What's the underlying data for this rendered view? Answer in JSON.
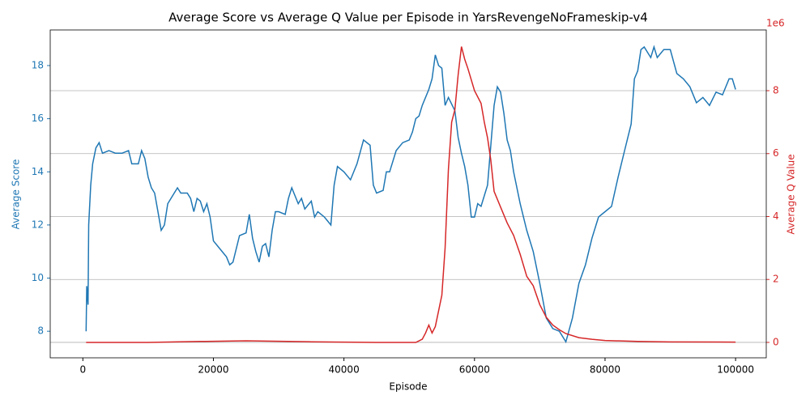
{
  "chart_data": {
    "type": "line",
    "title": "Average Score vs Average Q Value per Episode in YarsRevengeNoFrameskip-v4",
    "x_label": "Episode",
    "y_label": "Average Score",
    "y2_label": "Average Q Value",
    "y2_offset_text": "1e6",
    "xlim": [
      -5000,
      104700
    ],
    "xticks": [
      0,
      20000,
      40000,
      60000,
      80000,
      100000
    ],
    "ylim": [
      7.0,
      19.34
    ],
    "yticks": [
      8,
      10,
      12,
      14,
      16,
      18
    ],
    "y2lim": [
      -490000,
      9930000
    ],
    "y2ticks": [
      {
        "value": 0,
        "label": "0"
      },
      {
        "value": 2000000,
        "label": "2"
      },
      {
        "value": 4000000,
        "label": "4"
      },
      {
        "value": 6000000,
        "label": "6"
      },
      {
        "value": 8000000,
        "label": "8"
      }
    ],
    "grid": true,
    "grid_axis": "y2",
    "series": [
      {
        "name": "Average Score",
        "color": "#1f77b4",
        "axis": "y",
        "x": [
          500,
          600,
          800,
          900,
          1200,
          1500,
          2000,
          2500,
          3000,
          4000,
          5000,
          6000,
          7000,
          7500,
          8500,
          9000,
          9500,
          10000,
          10500,
          11000,
          11500,
          12000,
          12500,
          13000,
          14000,
          14500,
          15000,
          16000,
          16500,
          17000,
          17500,
          18000,
          18500,
          19000,
          19500,
          20000,
          21000,
          22000,
          22500,
          23000,
          24000,
          25000,
          25500,
          26000,
          26500,
          27000,
          27500,
          28000,
          28500,
          29000,
          29500,
          30000,
          31000,
          31500,
          32000,
          33000,
          33500,
          34000,
          35000,
          35500,
          36000,
          37000,
          38000,
          38500,
          39000,
          40000,
          41000,
          42000,
          43000,
          44000,
          44500,
          45000,
          46000,
          46500,
          47000,
          48000,
          49000,
          50000,
          50500,
          51000,
          51500,
          52000,
          53000,
          53500,
          54000,
          54500,
          55000,
          55500,
          56000,
          57000,
          57500,
          58000,
          58500,
          59000,
          59500,
          60000,
          60500,
          61000,
          62000,
          63000,
          63500,
          64000,
          64500,
          65000,
          65500,
          66000,
          67000,
          68000,
          69000,
          70000,
          71000,
          72000,
          73000,
          74000,
          75000,
          76000,
          77000,
          78000,
          79000,
          80000,
          81000,
          82000,
          83000,
          84000,
          84500,
          85000,
          85500,
          86000,
          87000,
          87500,
          88000,
          89000,
          90000,
          91000,
          92000,
          93000,
          94000,
          95000,
          96000,
          97000,
          98000,
          99000,
          99500,
          100000
        ],
        "values": [
          8.0,
          9.7,
          9.0,
          12,
          13.5,
          14.3,
          14.9,
          15.1,
          14.7,
          14.8,
          14.7,
          14.7,
          14.8,
          14.3,
          14.3,
          14.8,
          14.5,
          13.8,
          13.4,
          13.2,
          12.5,
          11.8,
          12.0,
          12.8,
          13.2,
          13.4,
          13.2,
          13.2,
          13.0,
          12.5,
          13.0,
          12.9,
          12.5,
          12.8,
          12.3,
          11.4,
          11.1,
          10.8,
          10.5,
          10.6,
          11.6,
          11.7,
          12.4,
          11.5,
          11.0,
          10.6,
          11.2,
          11.3,
          10.8,
          11.8,
          12.5,
          12.5,
          12.4,
          13.0,
          13.4,
          12.8,
          13.0,
          12.6,
          12.9,
          12.3,
          12.5,
          12.3,
          12.0,
          13.5,
          14.2,
          14.0,
          13.7,
          14.3,
          15.2,
          15.0,
          13.5,
          13.2,
          13.3,
          14.0,
          14.0,
          14.8,
          15.1,
          15.2,
          15.5,
          16.0,
          16.1,
          16.5,
          17.1,
          17.5,
          18.4,
          18.0,
          17.9,
          16.5,
          16.8,
          16.3,
          15.3,
          14.7,
          14.2,
          13.5,
          12.3,
          12.3,
          12.8,
          12.7,
          13.5,
          16.5,
          17.2,
          17.0,
          16.2,
          15.2,
          14.8,
          14.0,
          12.8,
          11.8,
          11.0,
          9.8,
          8.5,
          8.1,
          8.0,
          7.6,
          8.5,
          9.8,
          10.5,
          11.5,
          12.3,
          12.5,
          12.7,
          13.8,
          14.8,
          15.8,
          17.5,
          17.8,
          18.6,
          18.7,
          18.3,
          18.7,
          18.3,
          18.6,
          18.6,
          17.7,
          17.5,
          17.2,
          16.6,
          16.8,
          16.5,
          17.0,
          16.9,
          17.5,
          17.5,
          17.1
        ]
      },
      {
        "name": "Average Q Value",
        "color": "#d62728",
        "axis": "y2",
        "x": [
          500,
          10000,
          18000,
          25000,
          35000,
          45000,
          51000,
          52000,
          52500,
          53000,
          53500,
          54000,
          55000,
          55500,
          56000,
          56500,
          57000,
          57500,
          58000,
          58500,
          59000,
          60000,
          61000,
          61500,
          62000,
          62500,
          63000,
          64000,
          65000,
          66000,
          67000,
          68000,
          69000,
          70000,
          71000,
          72000,
          73000,
          74000,
          76000,
          78000,
          80000,
          85000,
          90000,
          100000
        ],
        "values": [
          0,
          0,
          30000,
          50000,
          20000,
          0,
          0,
          100000,
          300000,
          550000,
          300000,
          500000,
          1500000,
          3000000,
          5500000,
          7000000,
          7400000,
          8500000,
          9400000,
          9000000,
          8700000,
          8000000,
          7600000,
          7000000,
          6500000,
          5800000,
          4800000,
          4300000,
          3800000,
          3400000,
          2800000,
          2100000,
          1800000,
          1200000,
          800000,
          550000,
          400000,
          280000,
          150000,
          100000,
          60000,
          30000,
          15000,
          10000
        ]
      }
    ]
  }
}
